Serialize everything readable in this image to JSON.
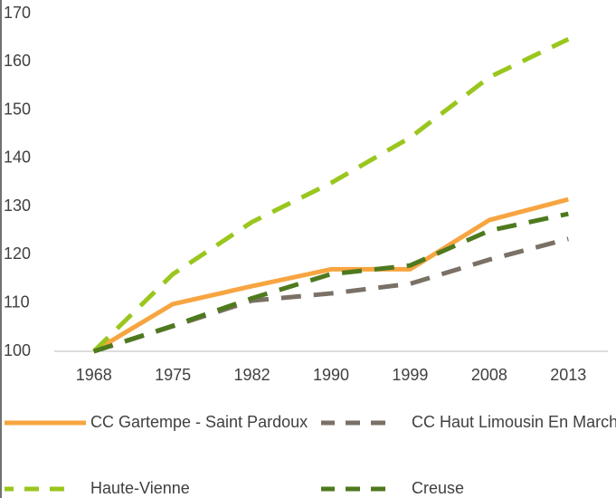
{
  "chart_data": {
    "type": "line",
    "categories": [
      "1968",
      "1975",
      "1982",
      "1990",
      "1999",
      "2008",
      "2013"
    ],
    "series": [
      {
        "name": "CC Gartempe - Saint Pardoux",
        "color": "#f7a541",
        "dash": false,
        "values": [
          100,
          109.8,
          113.5,
          117,
          117,
          127.2,
          131.5
        ]
      },
      {
        "name": "CC Haut Limousin En Marche",
        "color": "#7a7065",
        "dash": true,
        "values": [
          100,
          105.2,
          110.5,
          112,
          114,
          119,
          123.3
        ]
      },
      {
        "name": "Haute-Vienne",
        "color": "#9ac61e",
        "dash": true,
        "values": [
          100,
          116,
          126.8,
          134.9,
          144.3,
          156.8,
          164.7
        ]
      },
      {
        "name": "Creuse",
        "color": "#4e7a1e",
        "dash": true,
        "values": [
          100,
          105.3,
          111,
          116,
          117.8,
          125,
          128.5
        ]
      }
    ],
    "ylim": [
      100,
      170
    ],
    "yticks": [
      100,
      110,
      120,
      130,
      140,
      150,
      160,
      170
    ],
    "grid": false
  }
}
